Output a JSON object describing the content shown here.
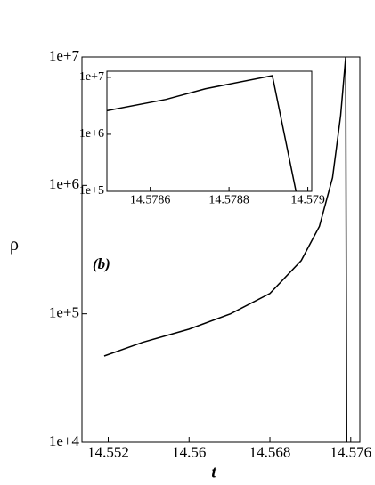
{
  "chart_data": [
    {
      "type": "line",
      "xlabel": "t",
      "ylabel": "ρ",
      "annotation": "(b)",
      "log_y": true,
      "color": "#000000",
      "x": [
        14.5516,
        14.5554,
        14.56,
        14.5641,
        14.568,
        14.5711,
        14.5729,
        14.5742,
        14.575,
        14.5755,
        14.5756
      ],
      "values": [
        47000,
        60000,
        76000,
        100000,
        144000,
        260000,
        480000,
        1150000,
        3500000,
        10000000,
        10000
      ],
      "xlim": [
        14.5494,
        14.5769
      ],
      "ylim": [
        10000,
        10000000
      ],
      "xticks": [
        14.552,
        14.56,
        14.568,
        14.576
      ],
      "yticks": [
        {
          "value": 10000,
          "label": "1e+4"
        },
        {
          "value": 100000,
          "label": "1e+5"
        },
        {
          "value": 1000000,
          "label": "1e+6"
        },
        {
          "value": 10000000,
          "label": "1e+7"
        }
      ]
    },
    {
      "type": "line",
      "log_y": true,
      "color": "#000000",
      "x": [
        14.57849,
        14.57864,
        14.57874,
        14.57891,
        14.57897
      ],
      "values": [
        2600000,
        4100000,
        6300000,
        10700000,
        100000
      ],
      "xlim": [
        14.57849,
        14.57901
      ],
      "ylim": [
        100000,
        12800000
      ],
      "xticks": [
        14.5786,
        14.5788,
        14.579
      ],
      "yticks": [
        {
          "value": 100000,
          "label": "1e+5"
        },
        {
          "value": 1000000,
          "label": "1e+6"
        },
        {
          "value": 10000000,
          "label": "1e+7"
        }
      ]
    }
  ]
}
